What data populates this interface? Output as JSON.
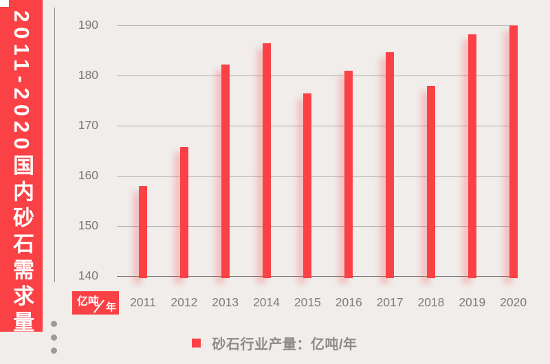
{
  "banner": {
    "title": "2011-2020国内砂石需求量"
  },
  "chart_data": {
    "type": "bar",
    "title": "2011-2020国内砂石需求量",
    "categories": [
      "2011",
      "2012",
      "2013",
      "2014",
      "2015",
      "2016",
      "2017",
      "2018",
      "2019",
      "2020"
    ],
    "values": [
      158,
      165.8,
      182.2,
      186.5,
      176.4,
      181,
      184.6,
      177.9,
      188.2,
      190
    ],
    "series_name": "砂石行业产量",
    "unit": "亿吨/年",
    "ylim": [
      140,
      190
    ],
    "yticks": [
      140,
      150,
      160,
      170,
      180,
      190
    ],
    "grid": true,
    "legend_position": "bottom",
    "bar_color": "#fa4145"
  },
  "unit_badge": {
    "numerator": "亿吨",
    "denominator": "年"
  },
  "legend": {
    "label": "砂石行业产量：亿吨/年"
  },
  "colors": {
    "accent_red": "#fa4145",
    "background": "#f0edeb",
    "text_gray": "#7b7b7b"
  }
}
